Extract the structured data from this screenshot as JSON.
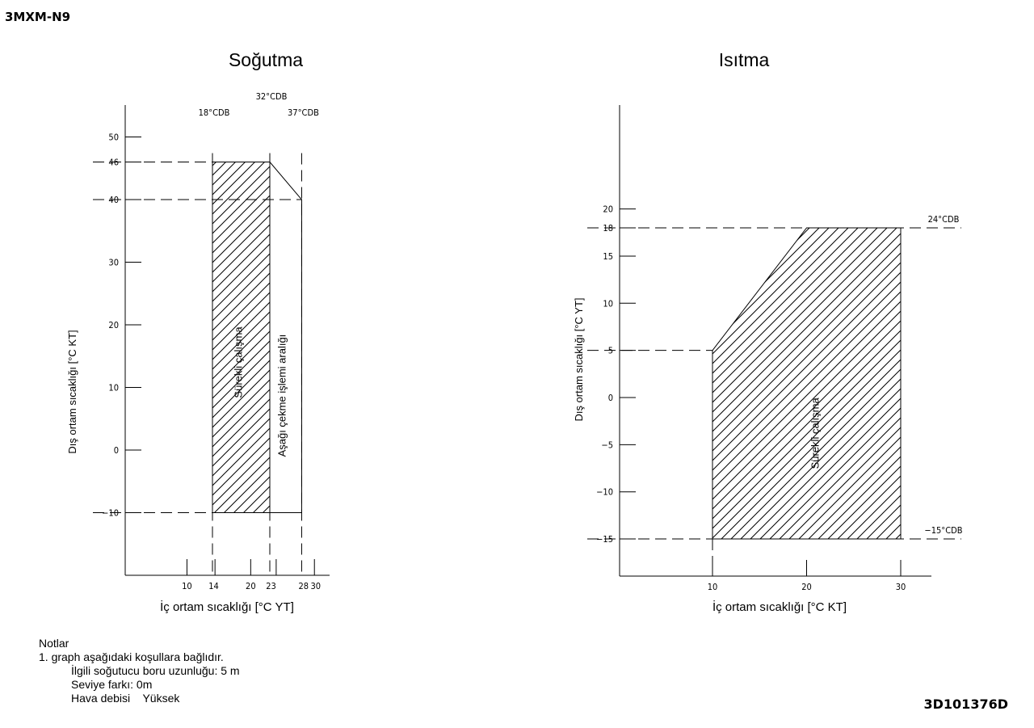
{
  "header": {
    "model": "3MXM-N9"
  },
  "footer": {
    "doc_code": "3D101376D"
  },
  "notes": {
    "title": "Notlar",
    "item1": "1. graph aşağıdaki koşullara bağlıdır.",
    "line1": "İlgili soğutucu boru uzunluğu: 5 m",
    "line2": "Seviye farkı: 0m",
    "line3": "Hava debisi    Yüksek"
  },
  "chart_data": [
    {
      "type": "area",
      "title": "Soğutma",
      "xlabel": "İç ortam sıcaklığı [°C YT]",
      "ylabel": "Dış ortam sıcaklığı [°C KT]",
      "x_ticks": [
        10,
        14,
        20,
        23,
        28,
        30
      ],
      "y_ticks": [
        -10,
        0,
        10,
        20,
        30,
        40,
        46,
        50
      ],
      "top_labels": [
        {
          "x": 14,
          "text": "18°CDB"
        },
        {
          "x": 23,
          "text": "32°CDB"
        },
        {
          "x": 28,
          "text": "37°CDB"
        }
      ],
      "regions": [
        {
          "name": "Sürekli çalışma",
          "hatched": true,
          "polygon": [
            [
              14,
              -10
            ],
            [
              23,
              -10
            ],
            [
              23,
              46
            ],
            [
              14,
              46
            ]
          ]
        },
        {
          "name": "Aşağı çekme işlemi aralığı",
          "hatched": false,
          "polygon": [
            [
              23,
              -10
            ],
            [
              28,
              -10
            ],
            [
              28,
              40
            ],
            [
              23,
              46
            ]
          ]
        }
      ]
    },
    {
      "type": "area",
      "title": "Isıtma",
      "xlabel": "İç ortam sıcaklığı [°C KT]",
      "ylabel": "Dış ortam sıcaklığı [°C YT]",
      "x_ticks": [
        10,
        20,
        30
      ],
      "y_ticks": [
        -15,
        -10,
        -5,
        0,
        5,
        10,
        15,
        18,
        20
      ],
      "right_labels": [
        {
          "y": 18,
          "text": "24°CDB"
        },
        {
          "y": -15,
          "text": "−15°CDB"
        }
      ],
      "regions": [
        {
          "name": "Sürekli çalışma",
          "hatched": true,
          "polygon": [
            [
              10,
              -15
            ],
            [
              30,
              -15
            ],
            [
              30,
              18
            ],
            [
              20,
              18
            ],
            [
              10,
              5
            ]
          ]
        }
      ]
    }
  ]
}
